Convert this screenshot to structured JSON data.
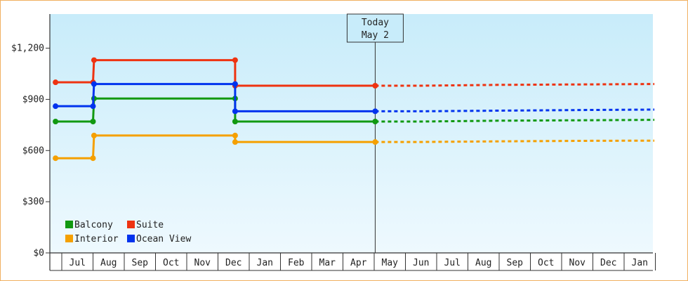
{
  "chart_data": {
    "type": "line",
    "title": "",
    "xlabel": "",
    "ylabel": "",
    "ylim": [
      0,
      1400
    ],
    "y_ticks": [
      0,
      300,
      600,
      900,
      1200
    ],
    "y_tick_labels": [
      "$0",
      "$300",
      "$600",
      "$900",
      "$1,200"
    ],
    "x_start": "2023-07",
    "x_ticks": [
      "Jul",
      "Aug",
      "Sep",
      "Oct",
      "Nov",
      "Dec",
      "Jan",
      "Feb",
      "Mar",
      "Apr",
      "May",
      "Jun",
      "Jul",
      "Aug",
      "Sep",
      "Oct",
      "Nov",
      "Dec",
      "Jan"
    ],
    "today_marker": {
      "line1": "Today",
      "line2": "May 2",
      "date": "May 2"
    },
    "legend_position": "bottom-left",
    "series": [
      {
        "name": "Balcony",
        "color": "#119911",
        "points": [
          [
            "2023-06-25",
            770
          ],
          [
            "2023-08-01",
            770
          ],
          [
            "2023-08-02",
            905
          ],
          [
            "2023-12-18",
            905
          ],
          [
            "2023-12-18",
            770
          ],
          [
            "2024-05-02",
            770
          ]
        ],
        "forecast": [
          [
            "2024-05-02",
            770
          ],
          [
            "2024-06-15",
            770
          ],
          [
            "2024-09-01",
            775
          ],
          [
            "2024-12-01",
            778
          ],
          [
            "2025-01-31",
            780
          ]
        ]
      },
      {
        "name": "Suite",
        "color": "#ee3311",
        "points": [
          [
            "2023-06-25",
            1000
          ],
          [
            "2023-08-01",
            1000
          ],
          [
            "2023-08-02",
            1130
          ],
          [
            "2023-12-18",
            1130
          ],
          [
            "2023-12-18",
            980
          ],
          [
            "2024-05-02",
            980
          ]
        ],
        "forecast": [
          [
            "2024-05-02",
            980
          ],
          [
            "2024-06-15",
            980
          ],
          [
            "2024-09-01",
            985
          ],
          [
            "2024-12-01",
            988
          ],
          [
            "2025-01-31",
            990
          ]
        ]
      },
      {
        "name": "Interior",
        "color": "#f5a000",
        "points": [
          [
            "2023-06-25",
            555
          ],
          [
            "2023-08-01",
            555
          ],
          [
            "2023-08-02",
            688
          ],
          [
            "2023-12-18",
            688
          ],
          [
            "2023-12-18",
            650
          ],
          [
            "2024-05-02",
            650
          ]
        ],
        "forecast": [
          [
            "2024-05-02",
            650
          ],
          [
            "2024-06-15",
            650
          ],
          [
            "2024-09-01",
            654
          ],
          [
            "2024-12-01",
            657
          ],
          [
            "2025-01-31",
            658
          ]
        ]
      },
      {
        "name": "Ocean View",
        "color": "#0033ee",
        "points": [
          [
            "2023-06-25",
            860
          ],
          [
            "2023-08-01",
            860
          ],
          [
            "2023-08-02",
            990
          ],
          [
            "2023-12-18",
            990
          ],
          [
            "2023-12-18",
            830
          ],
          [
            "2024-05-02",
            830
          ]
        ],
        "forecast": [
          [
            "2024-05-02",
            830
          ],
          [
            "2024-06-15",
            830
          ],
          [
            "2024-09-01",
            834
          ],
          [
            "2024-12-01",
            838
          ],
          [
            "2025-01-31",
            840
          ]
        ]
      }
    ]
  }
}
